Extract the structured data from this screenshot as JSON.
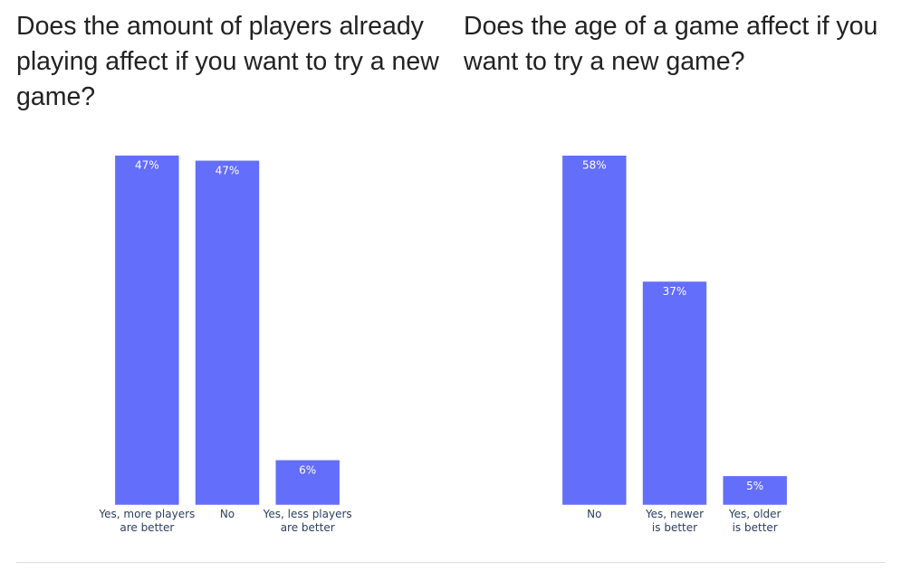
{
  "charts": [
    {
      "title": "Does the amount of players already playing affect if you want to try a new game?"
    },
    {
      "title": "Does the age of a game affect if you want to try a new game?"
    }
  ],
  "chart_data": [
    {
      "type": "bar",
      "title": "Does the amount of players already playing affect if you want to try a new game?",
      "categories": [
        [
          "Yes, more players",
          "are better"
        ],
        [
          "No"
        ],
        [
          "Yes, less players",
          "are better"
        ]
      ],
      "values": [
        47.4,
        46.7,
        6.1
      ],
      "value_labels": [
        "47%",
        "47%",
        "6%"
      ],
      "bar_color": "#636efa",
      "ylim": [
        0,
        48.7
      ],
      "grid": false
    },
    {
      "type": "bar",
      "title": "Does the age of a game affect if you want to try a new game?",
      "categories": [
        [
          "No"
        ],
        [
          "Yes, newer",
          "is better"
        ],
        [
          "Yes, older",
          "is better"
        ]
      ],
      "values": [
        57.7,
        36.9,
        4.8
      ],
      "value_labels": [
        "58%",
        "37%",
        "5%"
      ],
      "bar_color": "#636efa",
      "ylim": [
        0,
        59.3
      ],
      "grid": false
    }
  ]
}
